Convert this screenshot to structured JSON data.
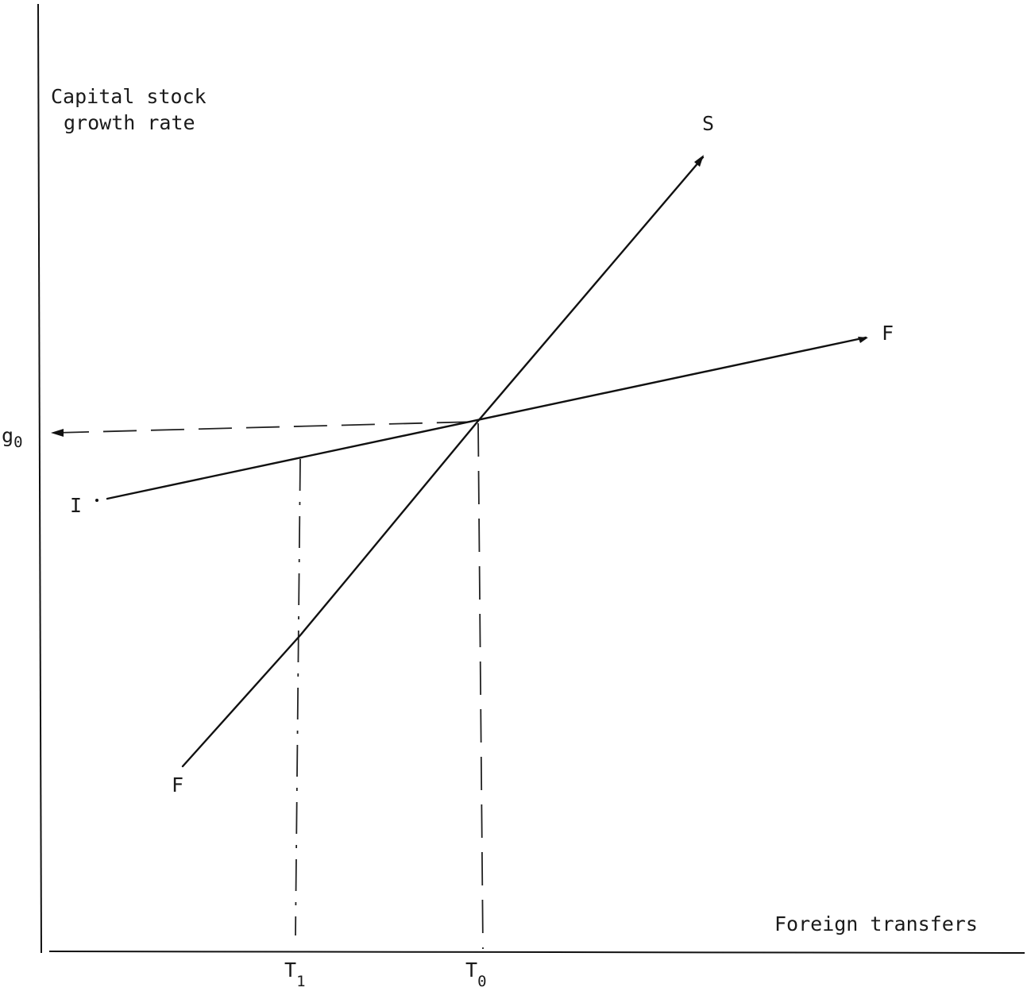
{
  "axes": {
    "y_label_line1": "Capital stock",
    "y_label_line2": "growth rate",
    "x_label": "Foreign transfers"
  },
  "curves": {
    "steep": {
      "start_label": "F",
      "end_label": "S"
    },
    "flat": {
      "start_label": "I",
      "end_label": "F"
    }
  },
  "markers": {
    "g0": {
      "base": "g",
      "sub": "0"
    },
    "t0": {
      "base": "T",
      "sub": "0"
    },
    "t1": {
      "base": "T",
      "sub": "1"
    }
  }
}
